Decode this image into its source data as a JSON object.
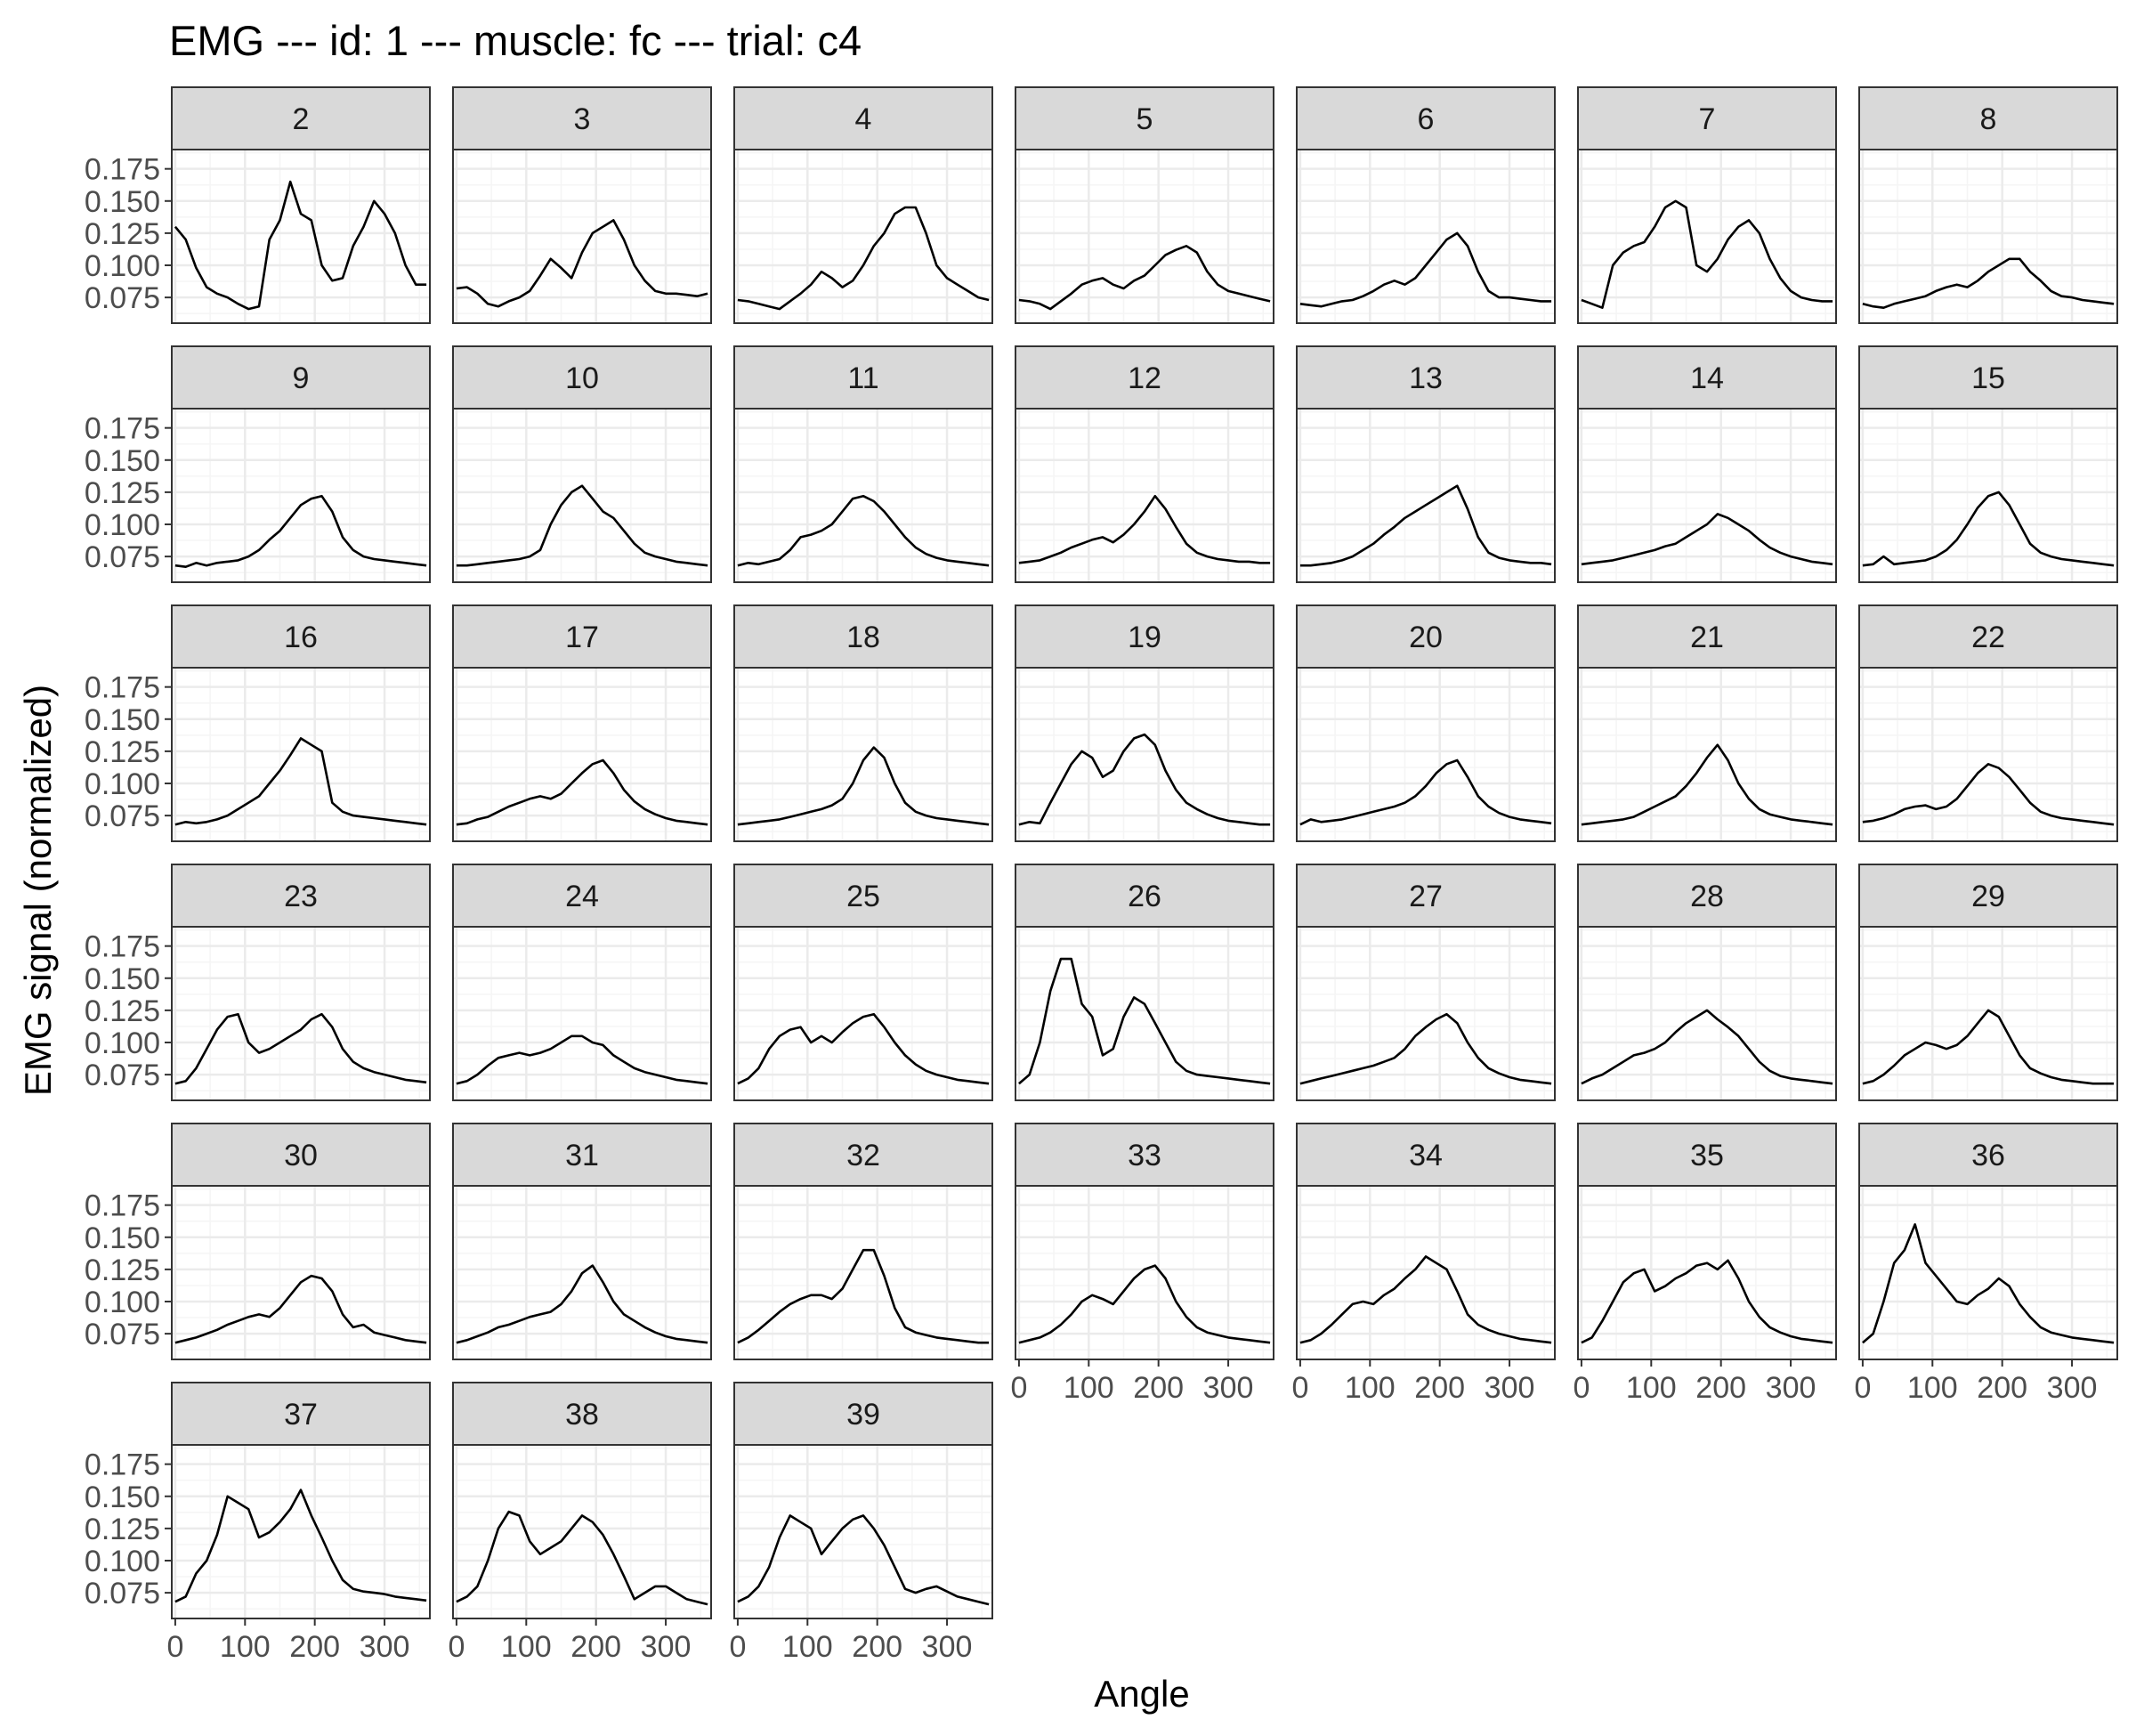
{
  "chart_data": {
    "type": "line",
    "title": "EMG --- id: 1 --- muscle: fc --- trial: c4",
    "xlabel": "Angle",
    "ylabel": "EMG signal (normalized)",
    "xlim": [
      -5,
      365
    ],
    "ylim": [
      0.055,
      0.19
    ],
    "x_ticks": [
      0,
      100,
      200,
      300
    ],
    "y_ticks": [
      0.075,
      0.1,
      0.125,
      0.15,
      0.175
    ],
    "x_tick_labels": [
      "0",
      "100",
      "200",
      "300"
    ],
    "y_tick_labels": [
      "0.075",
      "0.100",
      "0.125",
      "0.150",
      "0.175"
    ],
    "grid": true,
    "facet_columns": 7,
    "x": [
      0,
      15,
      30,
      45,
      60,
      75,
      90,
      105,
      120,
      135,
      150,
      165,
      180,
      195,
      210,
      225,
      240,
      255,
      270,
      285,
      300,
      315,
      330,
      345,
      360
    ],
    "series": [
      {
        "name": "2",
        "values": [
          0.13,
          0.12,
          0.098,
          0.083,
          0.078,
          0.075,
          0.07,
          0.066,
          0.068,
          0.12,
          0.135,
          0.165,
          0.14,
          0.135,
          0.1,
          0.088,
          0.09,
          0.115,
          0.13,
          0.15,
          0.14,
          0.125,
          0.1,
          0.085,
          0.085
        ]
      },
      {
        "name": "3",
        "values": [
          0.082,
          0.083,
          0.078,
          0.07,
          0.068,
          0.072,
          0.075,
          0.08,
          0.092,
          0.105,
          0.098,
          0.09,
          0.11,
          0.125,
          0.13,
          0.135,
          0.12,
          0.1,
          0.088,
          0.08,
          0.078,
          0.078,
          0.077,
          0.076,
          0.078
        ]
      },
      {
        "name": "4",
        "values": [
          0.073,
          0.072,
          0.07,
          0.068,
          0.066,
          0.072,
          0.078,
          0.085,
          0.095,
          0.09,
          0.083,
          0.088,
          0.1,
          0.115,
          0.125,
          0.14,
          0.145,
          0.145,
          0.125,
          0.1,
          0.09,
          0.085,
          0.08,
          0.075,
          0.073
        ]
      },
      {
        "name": "5",
        "values": [
          0.073,
          0.072,
          0.07,
          0.066,
          0.072,
          0.078,
          0.085,
          0.088,
          0.09,
          0.085,
          0.082,
          0.088,
          0.092,
          0.1,
          0.108,
          0.112,
          0.115,
          0.11,
          0.095,
          0.085,
          0.08,
          0.078,
          0.076,
          0.074,
          0.072
        ]
      },
      {
        "name": "6",
        "values": [
          0.07,
          0.069,
          0.068,
          0.07,
          0.072,
          0.073,
          0.076,
          0.08,
          0.085,
          0.088,
          0.085,
          0.09,
          0.1,
          0.11,
          0.12,
          0.125,
          0.115,
          0.095,
          0.08,
          0.075,
          0.075,
          0.074,
          0.073,
          0.072,
          0.072
        ]
      },
      {
        "name": "7",
        "values": [
          0.073,
          0.07,
          0.067,
          0.1,
          0.11,
          0.115,
          0.118,
          0.13,
          0.145,
          0.15,
          0.145,
          0.1,
          0.095,
          0.105,
          0.12,
          0.13,
          0.135,
          0.125,
          0.105,
          0.09,
          0.08,
          0.075,
          0.073,
          0.072,
          0.072
        ]
      },
      {
        "name": "8",
        "values": [
          0.07,
          0.068,
          0.067,
          0.07,
          0.072,
          0.074,
          0.076,
          0.08,
          0.083,
          0.085,
          0.083,
          0.088,
          0.095,
          0.1,
          0.105,
          0.105,
          0.095,
          0.088,
          0.08,
          0.076,
          0.075,
          0.073,
          0.072,
          0.071,
          0.07
        ]
      },
      {
        "name": "9",
        "values": [
          0.068,
          0.067,
          0.07,
          0.068,
          0.07,
          0.071,
          0.072,
          0.075,
          0.08,
          0.088,
          0.095,
          0.105,
          0.115,
          0.12,
          0.122,
          0.11,
          0.09,
          0.08,
          0.075,
          0.073,
          0.072,
          0.071,
          0.07,
          0.069,
          0.068
        ]
      },
      {
        "name": "10",
        "values": [
          0.068,
          0.068,
          0.069,
          0.07,
          0.071,
          0.072,
          0.073,
          0.075,
          0.08,
          0.1,
          0.115,
          0.125,
          0.13,
          0.12,
          0.11,
          0.105,
          0.095,
          0.085,
          0.078,
          0.075,
          0.073,
          0.071,
          0.07,
          0.069,
          0.068
        ]
      },
      {
        "name": "11",
        "values": [
          0.068,
          0.07,
          0.069,
          0.071,
          0.073,
          0.08,
          0.09,
          0.092,
          0.095,
          0.1,
          0.11,
          0.12,
          0.122,
          0.118,
          0.11,
          0.1,
          0.09,
          0.082,
          0.077,
          0.074,
          0.072,
          0.071,
          0.07,
          0.069,
          0.068
        ]
      },
      {
        "name": "12",
        "values": [
          0.07,
          0.071,
          0.072,
          0.075,
          0.078,
          0.082,
          0.085,
          0.088,
          0.09,
          0.086,
          0.092,
          0.1,
          0.11,
          0.122,
          0.112,
          0.098,
          0.085,
          0.078,
          0.075,
          0.073,
          0.072,
          0.071,
          0.071,
          0.07,
          0.07
        ]
      },
      {
        "name": "13",
        "values": [
          0.068,
          0.068,
          0.069,
          0.07,
          0.072,
          0.075,
          0.08,
          0.085,
          0.092,
          0.098,
          0.105,
          0.11,
          0.115,
          0.12,
          0.125,
          0.13,
          0.112,
          0.09,
          0.078,
          0.074,
          0.072,
          0.071,
          0.07,
          0.07,
          0.069
        ]
      },
      {
        "name": "14",
        "values": [
          0.069,
          0.07,
          0.071,
          0.072,
          0.074,
          0.076,
          0.078,
          0.08,
          0.083,
          0.085,
          0.09,
          0.095,
          0.1,
          0.108,
          0.105,
          0.1,
          0.095,
          0.088,
          0.082,
          0.078,
          0.075,
          0.073,
          0.071,
          0.07,
          0.069
        ]
      },
      {
        "name": "15",
        "values": [
          0.068,
          0.069,
          0.075,
          0.069,
          0.07,
          0.071,
          0.072,
          0.075,
          0.08,
          0.088,
          0.1,
          0.113,
          0.122,
          0.125,
          0.115,
          0.1,
          0.085,
          0.078,
          0.075,
          0.073,
          0.072,
          0.071,
          0.07,
          0.069,
          0.068
        ]
      },
      {
        "name": "16",
        "values": [
          0.068,
          0.07,
          0.069,
          0.07,
          0.072,
          0.075,
          0.08,
          0.085,
          0.09,
          0.1,
          0.11,
          0.122,
          0.135,
          0.13,
          0.125,
          0.085,
          0.078,
          0.075,
          0.074,
          0.073,
          0.072,
          0.071,
          0.07,
          0.069,
          0.068
        ]
      },
      {
        "name": "17",
        "values": [
          0.068,
          0.069,
          0.072,
          0.074,
          0.078,
          0.082,
          0.085,
          0.088,
          0.09,
          0.088,
          0.092,
          0.1,
          0.108,
          0.115,
          0.118,
          0.108,
          0.095,
          0.086,
          0.08,
          0.076,
          0.073,
          0.071,
          0.07,
          0.069,
          0.068
        ]
      },
      {
        "name": "18",
        "values": [
          0.068,
          0.069,
          0.07,
          0.071,
          0.072,
          0.074,
          0.076,
          0.078,
          0.08,
          0.083,
          0.088,
          0.1,
          0.118,
          0.128,
          0.12,
          0.1,
          0.085,
          0.078,
          0.075,
          0.073,
          0.072,
          0.071,
          0.07,
          0.069,
          0.068
        ]
      },
      {
        "name": "19",
        "values": [
          0.068,
          0.07,
          0.069,
          0.085,
          0.1,
          0.115,
          0.125,
          0.12,
          0.105,
          0.11,
          0.125,
          0.135,
          0.138,
          0.13,
          0.11,
          0.095,
          0.085,
          0.08,
          0.076,
          0.073,
          0.071,
          0.07,
          0.069,
          0.068,
          0.068
        ]
      },
      {
        "name": "20",
        "values": [
          0.068,
          0.072,
          0.07,
          0.071,
          0.072,
          0.074,
          0.076,
          0.078,
          0.08,
          0.082,
          0.085,
          0.09,
          0.098,
          0.108,
          0.115,
          0.118,
          0.105,
          0.09,
          0.082,
          0.077,
          0.074,
          0.072,
          0.071,
          0.07,
          0.069
        ]
      },
      {
        "name": "21",
        "values": [
          0.068,
          0.069,
          0.07,
          0.071,
          0.072,
          0.074,
          0.078,
          0.082,
          0.086,
          0.09,
          0.098,
          0.108,
          0.12,
          0.13,
          0.118,
          0.1,
          0.088,
          0.08,
          0.076,
          0.074,
          0.072,
          0.071,
          0.07,
          0.069,
          0.068
        ]
      },
      {
        "name": "22",
        "values": [
          0.07,
          0.071,
          0.073,
          0.076,
          0.08,
          0.082,
          0.083,
          0.08,
          0.082,
          0.088,
          0.098,
          0.108,
          0.115,
          0.112,
          0.105,
          0.095,
          0.085,
          0.078,
          0.075,
          0.073,
          0.072,
          0.071,
          0.07,
          0.069,
          0.068
        ]
      },
      {
        "name": "23",
        "values": [
          0.068,
          0.07,
          0.08,
          0.095,
          0.11,
          0.12,
          0.122,
          0.1,
          0.092,
          0.095,
          0.1,
          0.105,
          0.11,
          0.118,
          0.122,
          0.112,
          0.095,
          0.085,
          0.08,
          0.077,
          0.075,
          0.073,
          0.071,
          0.07,
          0.069
        ]
      },
      {
        "name": "24",
        "values": [
          0.068,
          0.07,
          0.075,
          0.082,
          0.088,
          0.09,
          0.092,
          0.09,
          0.092,
          0.095,
          0.1,
          0.105,
          0.105,
          0.1,
          0.098,
          0.09,
          0.085,
          0.08,
          0.077,
          0.075,
          0.073,
          0.071,
          0.07,
          0.069,
          0.068
        ]
      },
      {
        "name": "25",
        "values": [
          0.068,
          0.072,
          0.08,
          0.095,
          0.105,
          0.11,
          0.112,
          0.1,
          0.105,
          0.1,
          0.108,
          0.115,
          0.12,
          0.122,
          0.112,
          0.1,
          0.09,
          0.083,
          0.078,
          0.075,
          0.073,
          0.071,
          0.07,
          0.069,
          0.068
        ]
      },
      {
        "name": "26",
        "values": [
          0.068,
          0.075,
          0.1,
          0.14,
          0.165,
          0.165,
          0.13,
          0.12,
          0.09,
          0.095,
          0.12,
          0.135,
          0.13,
          0.115,
          0.1,
          0.085,
          0.078,
          0.075,
          0.074,
          0.073,
          0.072,
          0.071,
          0.07,
          0.069,
          0.068
        ]
      },
      {
        "name": "27",
        "values": [
          0.068,
          0.07,
          0.072,
          0.074,
          0.076,
          0.078,
          0.08,
          0.082,
          0.085,
          0.088,
          0.095,
          0.105,
          0.112,
          0.118,
          0.122,
          0.115,
          0.1,
          0.088,
          0.08,
          0.076,
          0.073,
          0.071,
          0.07,
          0.069,
          0.068
        ]
      },
      {
        "name": "28",
        "values": [
          0.068,
          0.072,
          0.075,
          0.08,
          0.085,
          0.09,
          0.092,
          0.095,
          0.1,
          0.108,
          0.115,
          0.12,
          0.125,
          0.118,
          0.112,
          0.105,
          0.095,
          0.085,
          0.078,
          0.074,
          0.072,
          0.071,
          0.07,
          0.069,
          0.068
        ]
      },
      {
        "name": "29",
        "values": [
          0.068,
          0.07,
          0.075,
          0.082,
          0.09,
          0.095,
          0.1,
          0.098,
          0.095,
          0.098,
          0.105,
          0.115,
          0.125,
          0.12,
          0.105,
          0.09,
          0.08,
          0.076,
          0.073,
          0.071,
          0.07,
          0.069,
          0.068,
          0.068,
          0.068
        ]
      },
      {
        "name": "30",
        "values": [
          0.068,
          0.07,
          0.072,
          0.075,
          0.078,
          0.082,
          0.085,
          0.088,
          0.09,
          0.088,
          0.095,
          0.105,
          0.115,
          0.12,
          0.118,
          0.108,
          0.09,
          0.08,
          0.082,
          0.076,
          0.074,
          0.072,
          0.07,
          0.069,
          0.068
        ]
      },
      {
        "name": "31",
        "values": [
          0.068,
          0.07,
          0.073,
          0.076,
          0.08,
          0.082,
          0.085,
          0.088,
          0.09,
          0.092,
          0.098,
          0.108,
          0.122,
          0.128,
          0.115,
          0.1,
          0.09,
          0.085,
          0.08,
          0.076,
          0.073,
          0.071,
          0.07,
          0.069,
          0.068
        ]
      },
      {
        "name": "32",
        "values": [
          0.068,
          0.072,
          0.078,
          0.085,
          0.092,
          0.098,
          0.102,
          0.105,
          0.105,
          0.102,
          0.11,
          0.125,
          0.14,
          0.14,
          0.12,
          0.095,
          0.08,
          0.076,
          0.074,
          0.072,
          0.071,
          0.07,
          0.069,
          0.068,
          0.068
        ]
      },
      {
        "name": "33",
        "values": [
          0.068,
          0.07,
          0.072,
          0.076,
          0.082,
          0.09,
          0.1,
          0.105,
          0.102,
          0.098,
          0.108,
          0.118,
          0.125,
          0.128,
          0.118,
          0.1,
          0.088,
          0.08,
          0.076,
          0.074,
          0.072,
          0.071,
          0.07,
          0.069,
          0.068
        ]
      },
      {
        "name": "34",
        "values": [
          0.068,
          0.07,
          0.075,
          0.082,
          0.09,
          0.098,
          0.1,
          0.098,
          0.105,
          0.11,
          0.118,
          0.125,
          0.135,
          0.13,
          0.125,
          0.108,
          0.09,
          0.082,
          0.078,
          0.075,
          0.073,
          0.071,
          0.07,
          0.069,
          0.068
        ]
      },
      {
        "name": "35",
        "values": [
          0.068,
          0.072,
          0.085,
          0.1,
          0.115,
          0.122,
          0.125,
          0.108,
          0.112,
          0.118,
          0.122,
          0.128,
          0.13,
          0.125,
          0.132,
          0.118,
          0.1,
          0.088,
          0.08,
          0.076,
          0.073,
          0.071,
          0.07,
          0.069,
          0.068
        ]
      },
      {
        "name": "36",
        "values": [
          0.068,
          0.075,
          0.1,
          0.13,
          0.14,
          0.16,
          0.13,
          0.12,
          0.11,
          0.1,
          0.098,
          0.105,
          0.11,
          0.118,
          0.112,
          0.098,
          0.088,
          0.08,
          0.076,
          0.074,
          0.072,
          0.071,
          0.07,
          0.069,
          0.068
        ]
      },
      {
        "name": "37",
        "values": [
          0.068,
          0.072,
          0.09,
          0.1,
          0.12,
          0.15,
          0.145,
          0.14,
          0.118,
          0.122,
          0.13,
          0.14,
          0.155,
          0.135,
          0.118,
          0.1,
          0.085,
          0.078,
          0.076,
          0.075,
          0.074,
          0.072,
          0.071,
          0.07,
          0.069
        ]
      },
      {
        "name": "38",
        "values": [
          0.068,
          0.072,
          0.08,
          0.1,
          0.125,
          0.138,
          0.135,
          0.115,
          0.105,
          0.11,
          0.115,
          0.125,
          0.135,
          0.13,
          0.12,
          0.105,
          0.088,
          0.07,
          0.075,
          0.08,
          0.08,
          0.075,
          0.07,
          0.068,
          0.066
        ]
      },
      {
        "name": "39",
        "values": [
          0.068,
          0.072,
          0.08,
          0.095,
          0.118,
          0.135,
          0.13,
          0.125,
          0.105,
          0.115,
          0.125,
          0.132,
          0.135,
          0.125,
          0.112,
          0.095,
          0.078,
          0.075,
          0.078,
          0.08,
          0.076,
          0.072,
          0.07,
          0.068,
          0.066
        ]
      }
    ]
  }
}
